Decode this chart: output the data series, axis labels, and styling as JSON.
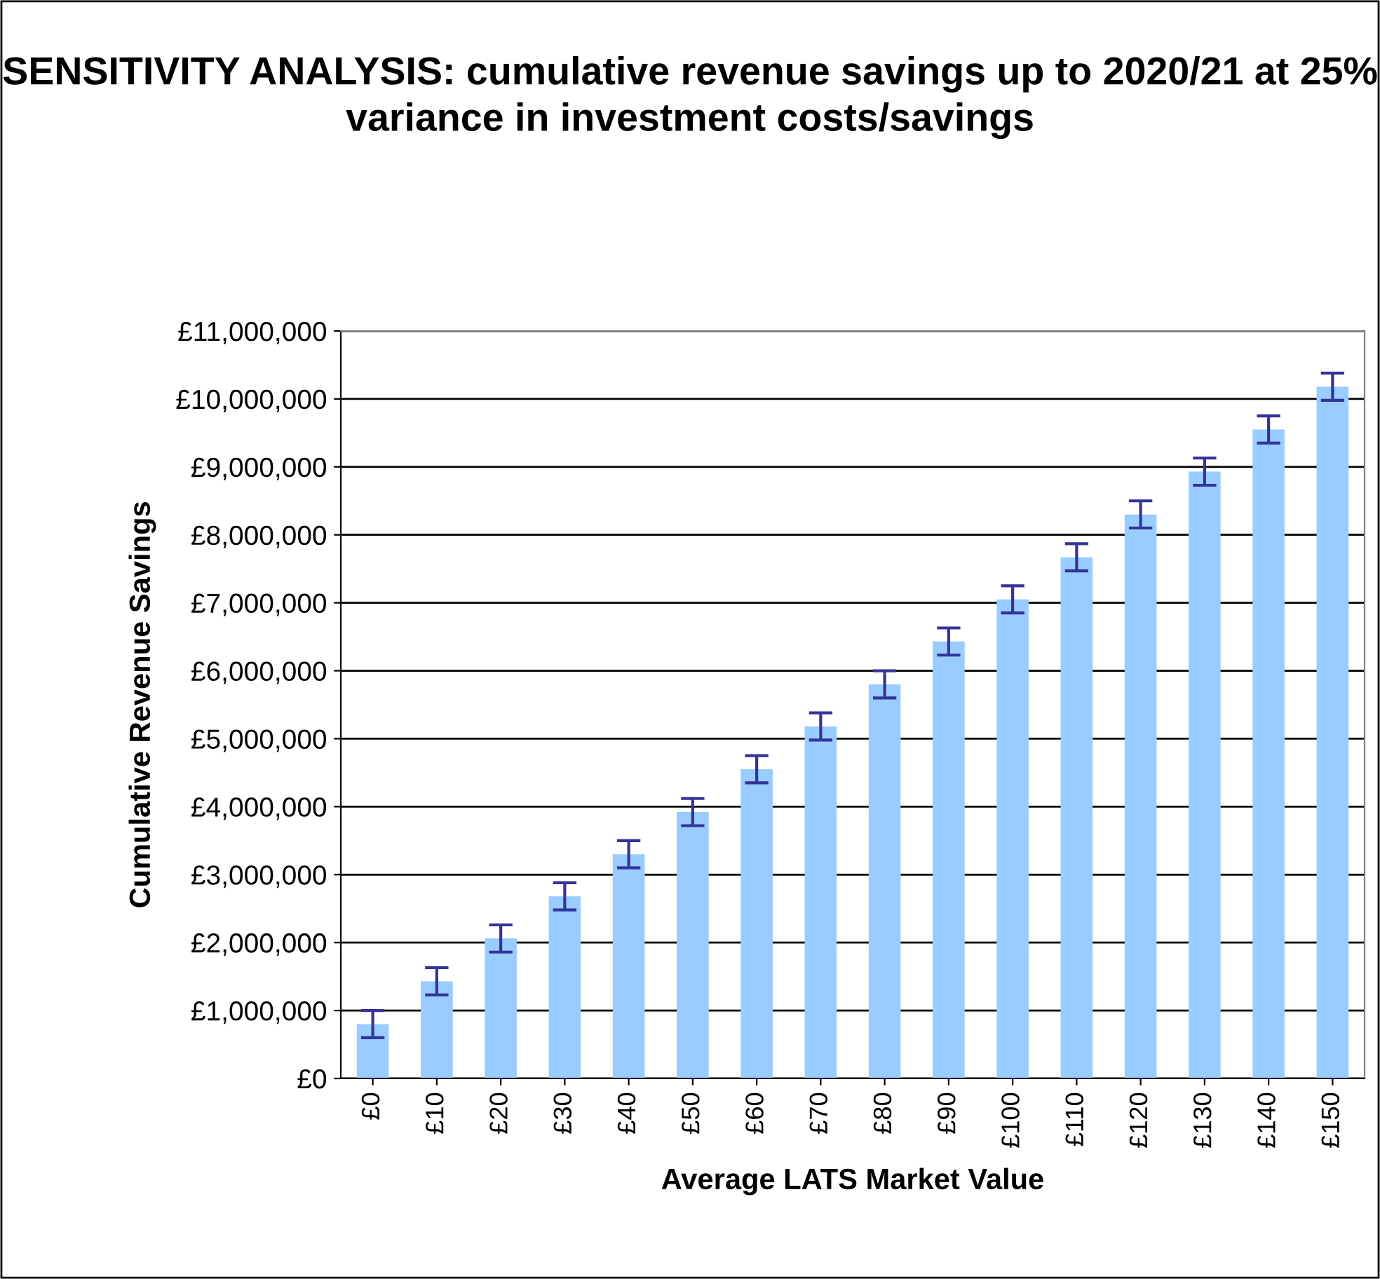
{
  "chart_data": {
    "type": "bar",
    "title": "SENSITIVITY ANALYSIS: cumulative revenue savings up to 2020/21 at 25% variance in investment costs/savings",
    "xlabel": "Average LATS Market Value",
    "ylabel": "Cumulative Revenue Savings",
    "categories": [
      "£0",
      "£10",
      "£20",
      "£30",
      "£40",
      "£50",
      "£60",
      "£70",
      "£80",
      "£90",
      "£100",
      "£110",
      "£120",
      "£130",
      "£140",
      "£150"
    ],
    "series": [
      {
        "color": "#99ccff",
        "values": [
          800000,
          1430000,
          2060000,
          2680000,
          3300000,
          3920000,
          4550000,
          5180000,
          5800000,
          6430000,
          7050000,
          7670000,
          8300000,
          8930000,
          9550000,
          10180000
        ],
        "errors": [
          200000,
          200000,
          200000,
          200000,
          200000,
          200000,
          200000,
          200000,
          200000,
          200000,
          200000,
          200000,
          200000,
          200000,
          200000,
          200000
        ]
      }
    ],
    "ylim": [
      0,
      11000000
    ],
    "yticks": [
      {
        "value": 0,
        "label": "£0"
      },
      {
        "value": 1000000,
        "label": "£1,000,000"
      },
      {
        "value": 2000000,
        "label": "£2,000,000"
      },
      {
        "value": 3000000,
        "label": "£3,000,000"
      },
      {
        "value": 4000000,
        "label": "£4,000,000"
      },
      {
        "value": 5000000,
        "label": "£5,000,000"
      },
      {
        "value": 6000000,
        "label": "£6,000,000"
      },
      {
        "value": 7000000,
        "label": "£7,000,000"
      },
      {
        "value": 8000000,
        "label": "£8,000,000"
      },
      {
        "value": 9000000,
        "label": "£9,000,000"
      },
      {
        "value": 10000000,
        "label": "£10,000,000"
      },
      {
        "value": 11000000,
        "label": "£11,000,000"
      }
    ],
    "grid": "y",
    "legend": false
  }
}
